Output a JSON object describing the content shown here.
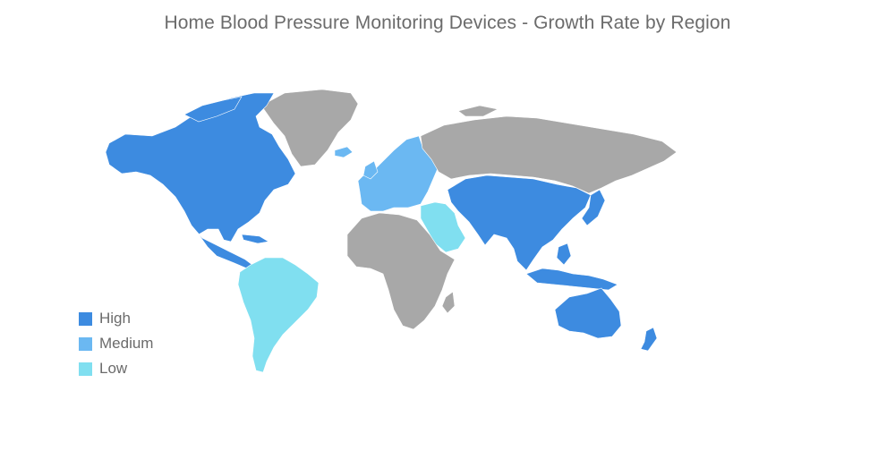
{
  "title": "Home Blood Pressure Monitoring Devices - Growth Rate by Region",
  "colors": {
    "high": "#3d8be0",
    "medium": "#6bb8f2",
    "low": "#80dff0",
    "no_data": "#a8a8a8"
  },
  "legend": [
    {
      "label": "High",
      "level": "high"
    },
    {
      "label": "Medium",
      "level": "medium"
    },
    {
      "label": "Low",
      "level": "low"
    }
  ],
  "regions": [
    {
      "name": "North America",
      "level": "high"
    },
    {
      "name": "Greenland",
      "level": "no_data"
    },
    {
      "name": "South America",
      "level": "low"
    },
    {
      "name": "Europe",
      "level": "medium"
    },
    {
      "name": "Russia",
      "level": "no_data"
    },
    {
      "name": "Middle East",
      "level": "low"
    },
    {
      "name": "Africa",
      "level": "no_data"
    },
    {
      "name": "Asia-Pacific",
      "level": "high"
    },
    {
      "name": "Australia",
      "level": "high"
    },
    {
      "name": "New Zealand",
      "level": "high"
    }
  ]
}
